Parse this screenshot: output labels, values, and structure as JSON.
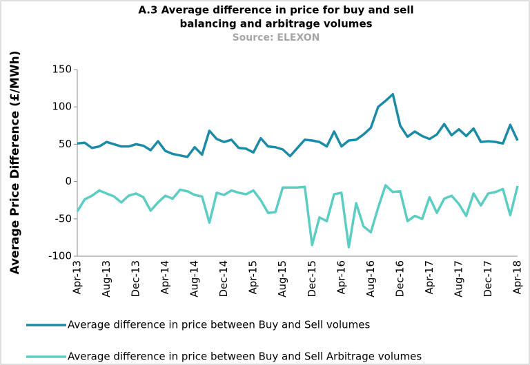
{
  "chart_data": {
    "type": "line",
    "title": [
      "A.3 Average difference in price for buy and sell",
      "balancing and arbitrage volumes"
    ],
    "subtitle": "Source: ELEXON",
    "y_label": "Average Price Difference (£/MWh)",
    "categories": [
      "Apr-13",
      null,
      null,
      null,
      "Aug-13",
      null,
      null,
      null,
      "Dec-13",
      null,
      null,
      null,
      "Apr-14",
      null,
      null,
      null,
      "Aug-14",
      null,
      null,
      null,
      "Dec-14",
      null,
      null,
      null,
      "Apr-15",
      null,
      null,
      null,
      "Aug-15",
      null,
      null,
      null,
      "Dec-15",
      null,
      null,
      null,
      "Apr-16",
      null,
      null,
      null,
      "Aug-16",
      null,
      null,
      null,
      "Dec-16",
      null,
      null,
      null,
      "Apr-17",
      null,
      null,
      null,
      "Aug-17",
      null,
      null,
      null,
      "Dec-17",
      null,
      null,
      null,
      "Apr-18"
    ],
    "series": [
      {
        "name": "Average difference in price between Buy and Sell volumes",
        "color": "#1b8ba6",
        "values": [
          51,
          52,
          45,
          47,
          53,
          50,
          47,
          47,
          50,
          48,
          42,
          54,
          41,
          37,
          35,
          33,
          46,
          36,
          68,
          57,
          53,
          56,
          45,
          44,
          39,
          58,
          47,
          46,
          43,
          34,
          45,
          56,
          55,
          53,
          47,
          67,
          47,
          55,
          56,
          63,
          72,
          100,
          108,
          117,
          75,
          60,
          67,
          61,
          57,
          63,
          77,
          62,
          70,
          61,
          71,
          53,
          54,
          53,
          51,
          76,
          55
        ]
      },
      {
        "name": "Average difference in price between Buy and Sell Arbitrage volumes",
        "color": "#5ccdc3",
        "values": [
          -40,
          -24,
          -19,
          -12,
          -16,
          -20,
          -28,
          -19,
          -16,
          -21,
          -39,
          -28,
          -19,
          -23,
          -11,
          -13,
          -18,
          -20,
          -55,
          -15,
          -18,
          -12,
          -15,
          -17,
          -12,
          -25,
          -42,
          -41,
          -8,
          -8,
          -8,
          -7,
          -85,
          -48,
          -53,
          -17,
          -15,
          -88,
          -29,
          -60,
          -68,
          -35,
          -5,
          -14,
          -13,
          -53,
          -46,
          -50,
          -21,
          -42,
          -23,
          -19,
          -30,
          -46,
          -16,
          -32,
          -16,
          -14,
          -10,
          -45,
          -6
        ]
      }
    ],
    "ylim": [
      -100,
      150
    ],
    "yticks": [
      -100,
      -50,
      0,
      50,
      100,
      150
    ],
    "grid": false
  }
}
